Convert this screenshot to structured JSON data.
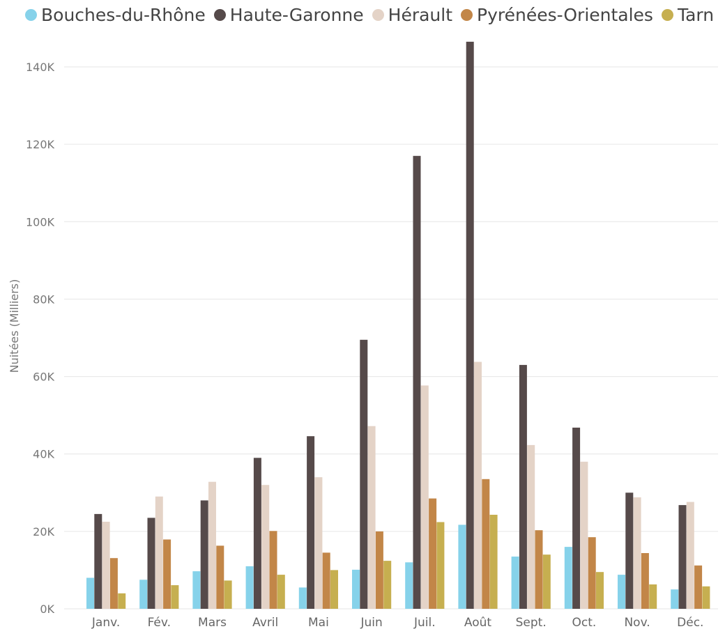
{
  "chart_data": {
    "type": "bar",
    "title": "",
    "xlabel": "",
    "ylabel": "Nuitées (Milliers)",
    "ylim": [
      0,
      140000
    ],
    "yticks": [
      0,
      20000,
      40000,
      60000,
      80000,
      100000,
      120000,
      140000
    ],
    "ytick_labels": [
      "0K",
      "20K",
      "40K",
      "60K",
      "80K",
      "100K",
      "120K",
      "140K"
    ],
    "grid": true,
    "legend_position": "top-left",
    "categories": [
      "Janv.",
      "Fév.",
      "Mars",
      "Avril",
      "Mai",
      "Juin",
      "Juil.",
      "Août",
      "Sept.",
      "Oct.",
      "Nov.",
      "Déc."
    ],
    "series": [
      {
        "name": "Bouches-du-Rhône",
        "color": "#86d2ea",
        "values": [
          8000,
          7500,
          9700,
          11000,
          5500,
          10100,
          12000,
          21700,
          13500,
          16000,
          8800,
          5000
        ]
      },
      {
        "name": "Haute-Garonne",
        "color": "#564a4a",
        "values": [
          24500,
          23500,
          28000,
          39000,
          44600,
          69500,
          117000,
          146500,
          63000,
          46800,
          30000,
          26800
        ]
      },
      {
        "name": "Hérault",
        "color": "#e4d3c7",
        "values": [
          22500,
          29000,
          32800,
          32000,
          34000,
          47200,
          57700,
          63800,
          42300,
          38000,
          28800,
          27600
        ]
      },
      {
        "name": "Pyrénées-Orientales",
        "color": "#c28648",
        "values": [
          13100,
          17900,
          16300,
          20100,
          14500,
          20000,
          28500,
          33500,
          20300,
          18500,
          14400,
          11200
        ]
      },
      {
        "name": "Tarn",
        "color": "#c6af50",
        "values": [
          4000,
          6100,
          7300,
          8800,
          10000,
          12400,
          22400,
          24300,
          14000,
          9500,
          6300,
          5800
        ]
      }
    ]
  }
}
